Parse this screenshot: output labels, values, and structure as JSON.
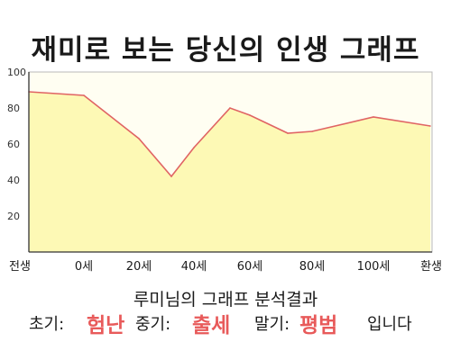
{
  "header": {
    "title": "재미로 보는 당신의 인생 그래프"
  },
  "colors": {
    "line": "#e06464",
    "fill": "#fdf9b5",
    "plot_bg": "#fffef2",
    "highlight": "#e85a5a"
  },
  "chart_data": {
    "type": "area",
    "title": "재미로 보는 당신의 인생 그래프",
    "xlabel": "",
    "ylabel": "",
    "x_ticks": [
      "전생",
      "0세",
      "20세",
      "40세",
      "60세",
      "80세",
      "100세",
      "환생"
    ],
    "y_ticks": [
      "100",
      "80",
      "60",
      "40",
      "20"
    ],
    "ylim": [
      0,
      100
    ],
    "grid": false,
    "series": [
      {
        "points": [
          {
            "x": "전생",
            "y": 89
          },
          {
            "x": "0세",
            "y": 87
          },
          {
            "x": "20세",
            "y": 63
          },
          {
            "x": "30세",
            "y": 42
          },
          {
            "x": "40세",
            "y": 58
          },
          {
            "x": "50세",
            "y": 80
          },
          {
            "x": "60세",
            "y": 76
          },
          {
            "x": "70세",
            "y": 66
          },
          {
            "x": "80세",
            "y": 67
          },
          {
            "x": "100세",
            "y": 75
          },
          {
            "x": "환생",
            "y": 70
          }
        ]
      }
    ]
  },
  "analysis": {
    "title": "루미님의 그래프 분석결과",
    "early_label": "초기:",
    "early_value": "험난",
    "middle_label": "중기:",
    "middle_value": "출세",
    "late_label": "말기:",
    "late_value": "평범",
    "suffix": "입니다"
  }
}
